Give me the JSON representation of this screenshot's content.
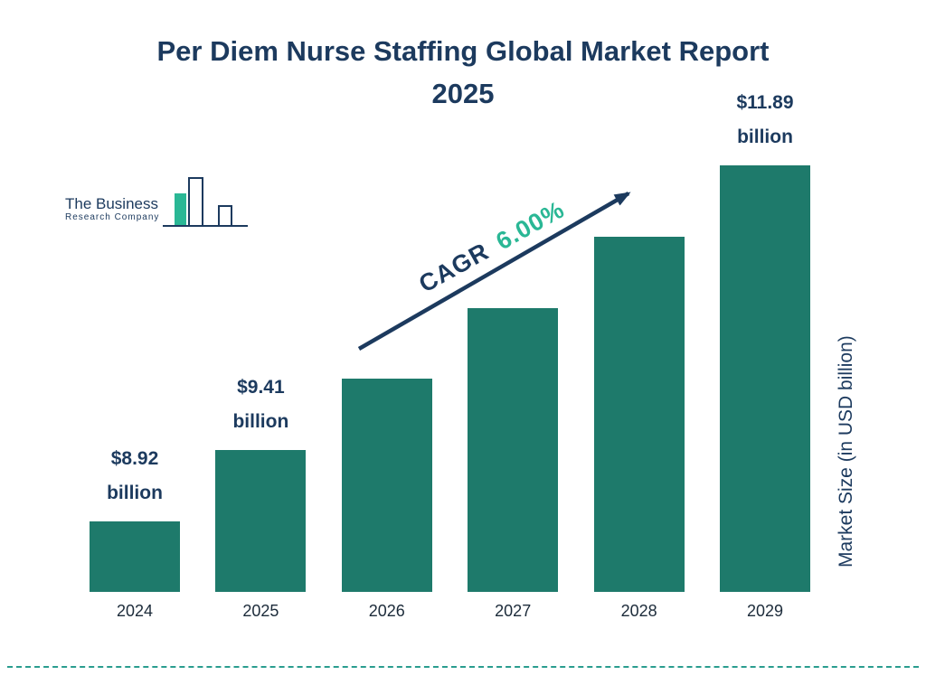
{
  "title": {
    "line1": "Per Diem Nurse Staffing Global Market Report",
    "line2": "2025"
  },
  "logo": {
    "line1": "The Business",
    "line2": "Research Company"
  },
  "chart_data": {
    "type": "bar",
    "title": "Per Diem Nurse Staffing Global Market Report 2025",
    "categories": [
      "2024",
      "2025",
      "2026",
      "2027",
      "2028",
      "2029"
    ],
    "values": [
      8.92,
      9.41,
      9.97,
      10.57,
      11.21,
      11.89
    ],
    "unit": "USD billion",
    "value_labels": [
      {
        "index": 0,
        "amount": "$8.92",
        "unit": "billion"
      },
      {
        "index": 1,
        "amount": "$9.41",
        "unit": "billion"
      },
      {
        "index": 5,
        "amount": "$11.89",
        "unit": "billion"
      }
    ],
    "cagr": {
      "label": "CAGR",
      "value": "6.00%"
    },
    "ylabel": "Market Size (in USD billion)",
    "xlabel": "",
    "legend": "none",
    "grid": false,
    "colors": {
      "bar": "#1e7a6b",
      "title": "#1c3a5e",
      "text": "#1c2b3a",
      "cagr_value": "#2ab795",
      "arrow": "#1c3a5e",
      "dashed_line": "#2a9d8f",
      "logo_green": "#2ab795"
    }
  }
}
